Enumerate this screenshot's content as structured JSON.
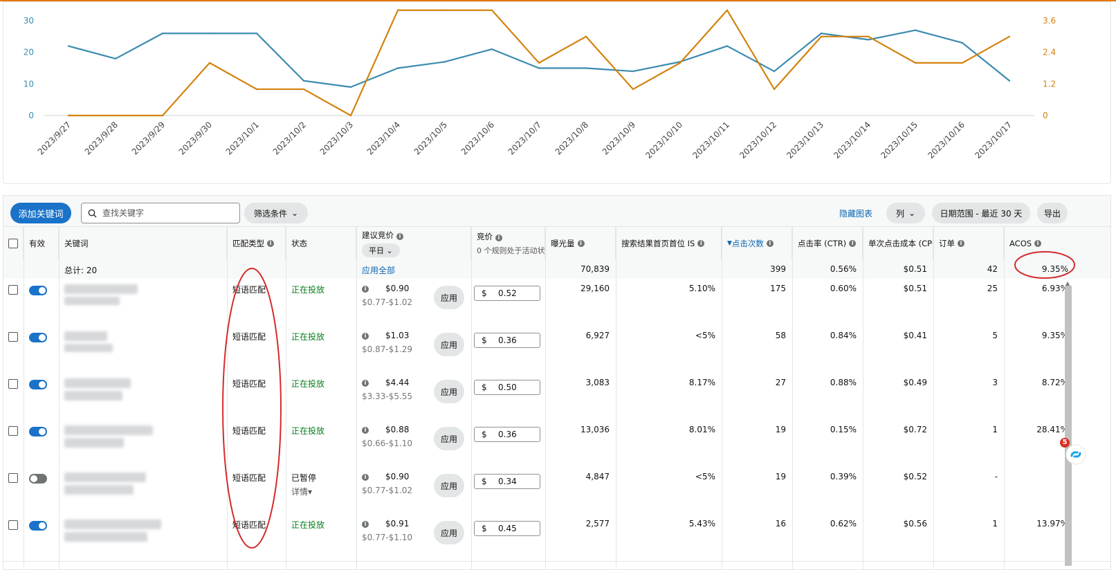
{
  "chart_data": {
    "type": "line",
    "x": [
      "2023/9/27",
      "2023/9/28",
      "2023/9/29",
      "2023/9/30",
      "2023/10/1",
      "2023/10/2",
      "2023/10/3",
      "2023/10/4",
      "2023/10/5",
      "2023/10/6",
      "2023/10/7",
      "2023/10/8",
      "2023/10/9",
      "2023/10/10",
      "2023/10/11",
      "2023/10/12",
      "2023/10/13",
      "2023/10/14",
      "2023/10/15",
      "2023/10/16",
      "2023/10/17"
    ],
    "series": [
      {
        "axis": "left",
        "color": "#3b8bb0",
        "values": [
          22,
          18,
          26,
          26,
          26,
          11,
          9,
          15,
          17,
          21,
          15,
          15,
          14,
          17,
          22,
          14,
          26,
          24,
          27,
          23,
          11
        ]
      },
      {
        "axis": "right",
        "color": "#d4820f",
        "values": [
          0,
          0,
          0,
          2,
          1,
          1,
          0,
          4,
          4,
          4,
          2,
          3,
          1,
          2,
          4,
          1,
          3,
          3,
          2,
          2,
          3
        ]
      }
    ],
    "left_ticks": [
      "0",
      "10",
      "20",
      "30"
    ],
    "right_ticks": [
      "0",
      "1.2",
      "2.4",
      "3.6"
    ],
    "ylim_left": [
      0,
      30
    ],
    "ylim_right": [
      0,
      3.6
    ],
    "grid": "horizontal-baseline"
  },
  "toolbar": {
    "add_keyword": "添加关键词",
    "search_placeholder": "查找关键字",
    "filter": "筛选条件",
    "hide_chart": "隐藏图表",
    "columns": "列",
    "date_range": "日期范围 - 最近 30 天",
    "export": "导出"
  },
  "headers": {
    "active": "有效",
    "keyword": "关键词",
    "match_type": "匹配类型",
    "status": "状态",
    "suggested_bid": "建议竞价",
    "suggested_bid_mode": "平日",
    "bid": "竞价",
    "bid_sub": "0 个规则处于活动状",
    "impressions": "曝光量",
    "top_is": "搜索结果首页首位 IS",
    "clicks": "点击次数",
    "ctr": "点击率 (CTR)",
    "cpc": "单次点击成本 (CPC)",
    "orders": "订单",
    "acos": "ACOS"
  },
  "totals": {
    "label": "总计: 20",
    "apply_all": "应用全部",
    "impressions": "70,839",
    "clicks": "399",
    "ctr": "0.56%",
    "cpc": "$0.51",
    "orders": "42",
    "acos": "9.35%"
  },
  "rows": [
    {
      "enabled": true,
      "match": "短语匹配",
      "status": "正在投放",
      "status_detail": "",
      "sug": "$0.90",
      "sug_range": "$0.77-$1.02",
      "apply": "应用",
      "currency": "$",
      "bid": "0.52",
      "impr": "29,160",
      "top_is": "5.10%",
      "clicks": "175",
      "ctr": "0.60%",
      "cpc": "$0.51",
      "orders": "25",
      "acos": "6.93%"
    },
    {
      "enabled": true,
      "match": "短语匹配",
      "status": "正在投放",
      "status_detail": "",
      "sug": "$1.03",
      "sug_range": "$0.87-$1.29",
      "apply": "应用",
      "currency": "$",
      "bid": "0.36",
      "impr": "6,927",
      "top_is": "<5%",
      "clicks": "58",
      "ctr": "0.84%",
      "cpc": "$0.41",
      "orders": "5",
      "acos": "9.35%"
    },
    {
      "enabled": true,
      "match": "短语匹配",
      "status": "正在投放",
      "status_detail": "",
      "sug": "$4.44",
      "sug_range": "$3.33-$5.55",
      "apply": "应用",
      "currency": "$",
      "bid": "0.50",
      "impr": "3,083",
      "top_is": "8.17%",
      "clicks": "27",
      "ctr": "0.88%",
      "cpc": "$0.49",
      "orders": "3",
      "acos": "8.72%"
    },
    {
      "enabled": true,
      "match": "短语匹配",
      "status": "正在投放",
      "status_detail": "",
      "sug": "$0.88",
      "sug_range": "$0.66-$1.10",
      "apply": "应用",
      "currency": "$",
      "bid": "0.36",
      "impr": "13,036",
      "top_is": "8.01%",
      "clicks": "19",
      "ctr": "0.15%",
      "cpc": "$0.72",
      "orders": "1",
      "acos": "28.41%"
    },
    {
      "enabled": false,
      "match": "短语匹配",
      "status": "已暂停",
      "status_detail": "详情▾",
      "sug": "$0.90",
      "sug_range": "$0.77-$1.02",
      "apply": "应用",
      "currency": "$",
      "bid": "0.34",
      "impr": "4,847",
      "top_is": "<5%",
      "clicks": "19",
      "ctr": "0.39%",
      "cpc": "$0.52",
      "orders": "-",
      "acos": "-"
    },
    {
      "enabled": true,
      "match": "短语匹配",
      "status": "正在投放",
      "status_detail": "",
      "sug": "$0.91",
      "sug_range": "$0.77-$1.10",
      "apply": "应用",
      "currency": "$",
      "bid": "0.45",
      "impr": "2,577",
      "top_is": "5.43%",
      "clicks": "16",
      "ctr": "0.62%",
      "cpc": "$0.56",
      "orders": "1",
      "acos": "13.97%"
    }
  ],
  "widget": {
    "badge": "5"
  },
  "colors": {
    "primary": "#1a73c9",
    "running": "#067d1b",
    "annotation": "#d22b2b"
  }
}
